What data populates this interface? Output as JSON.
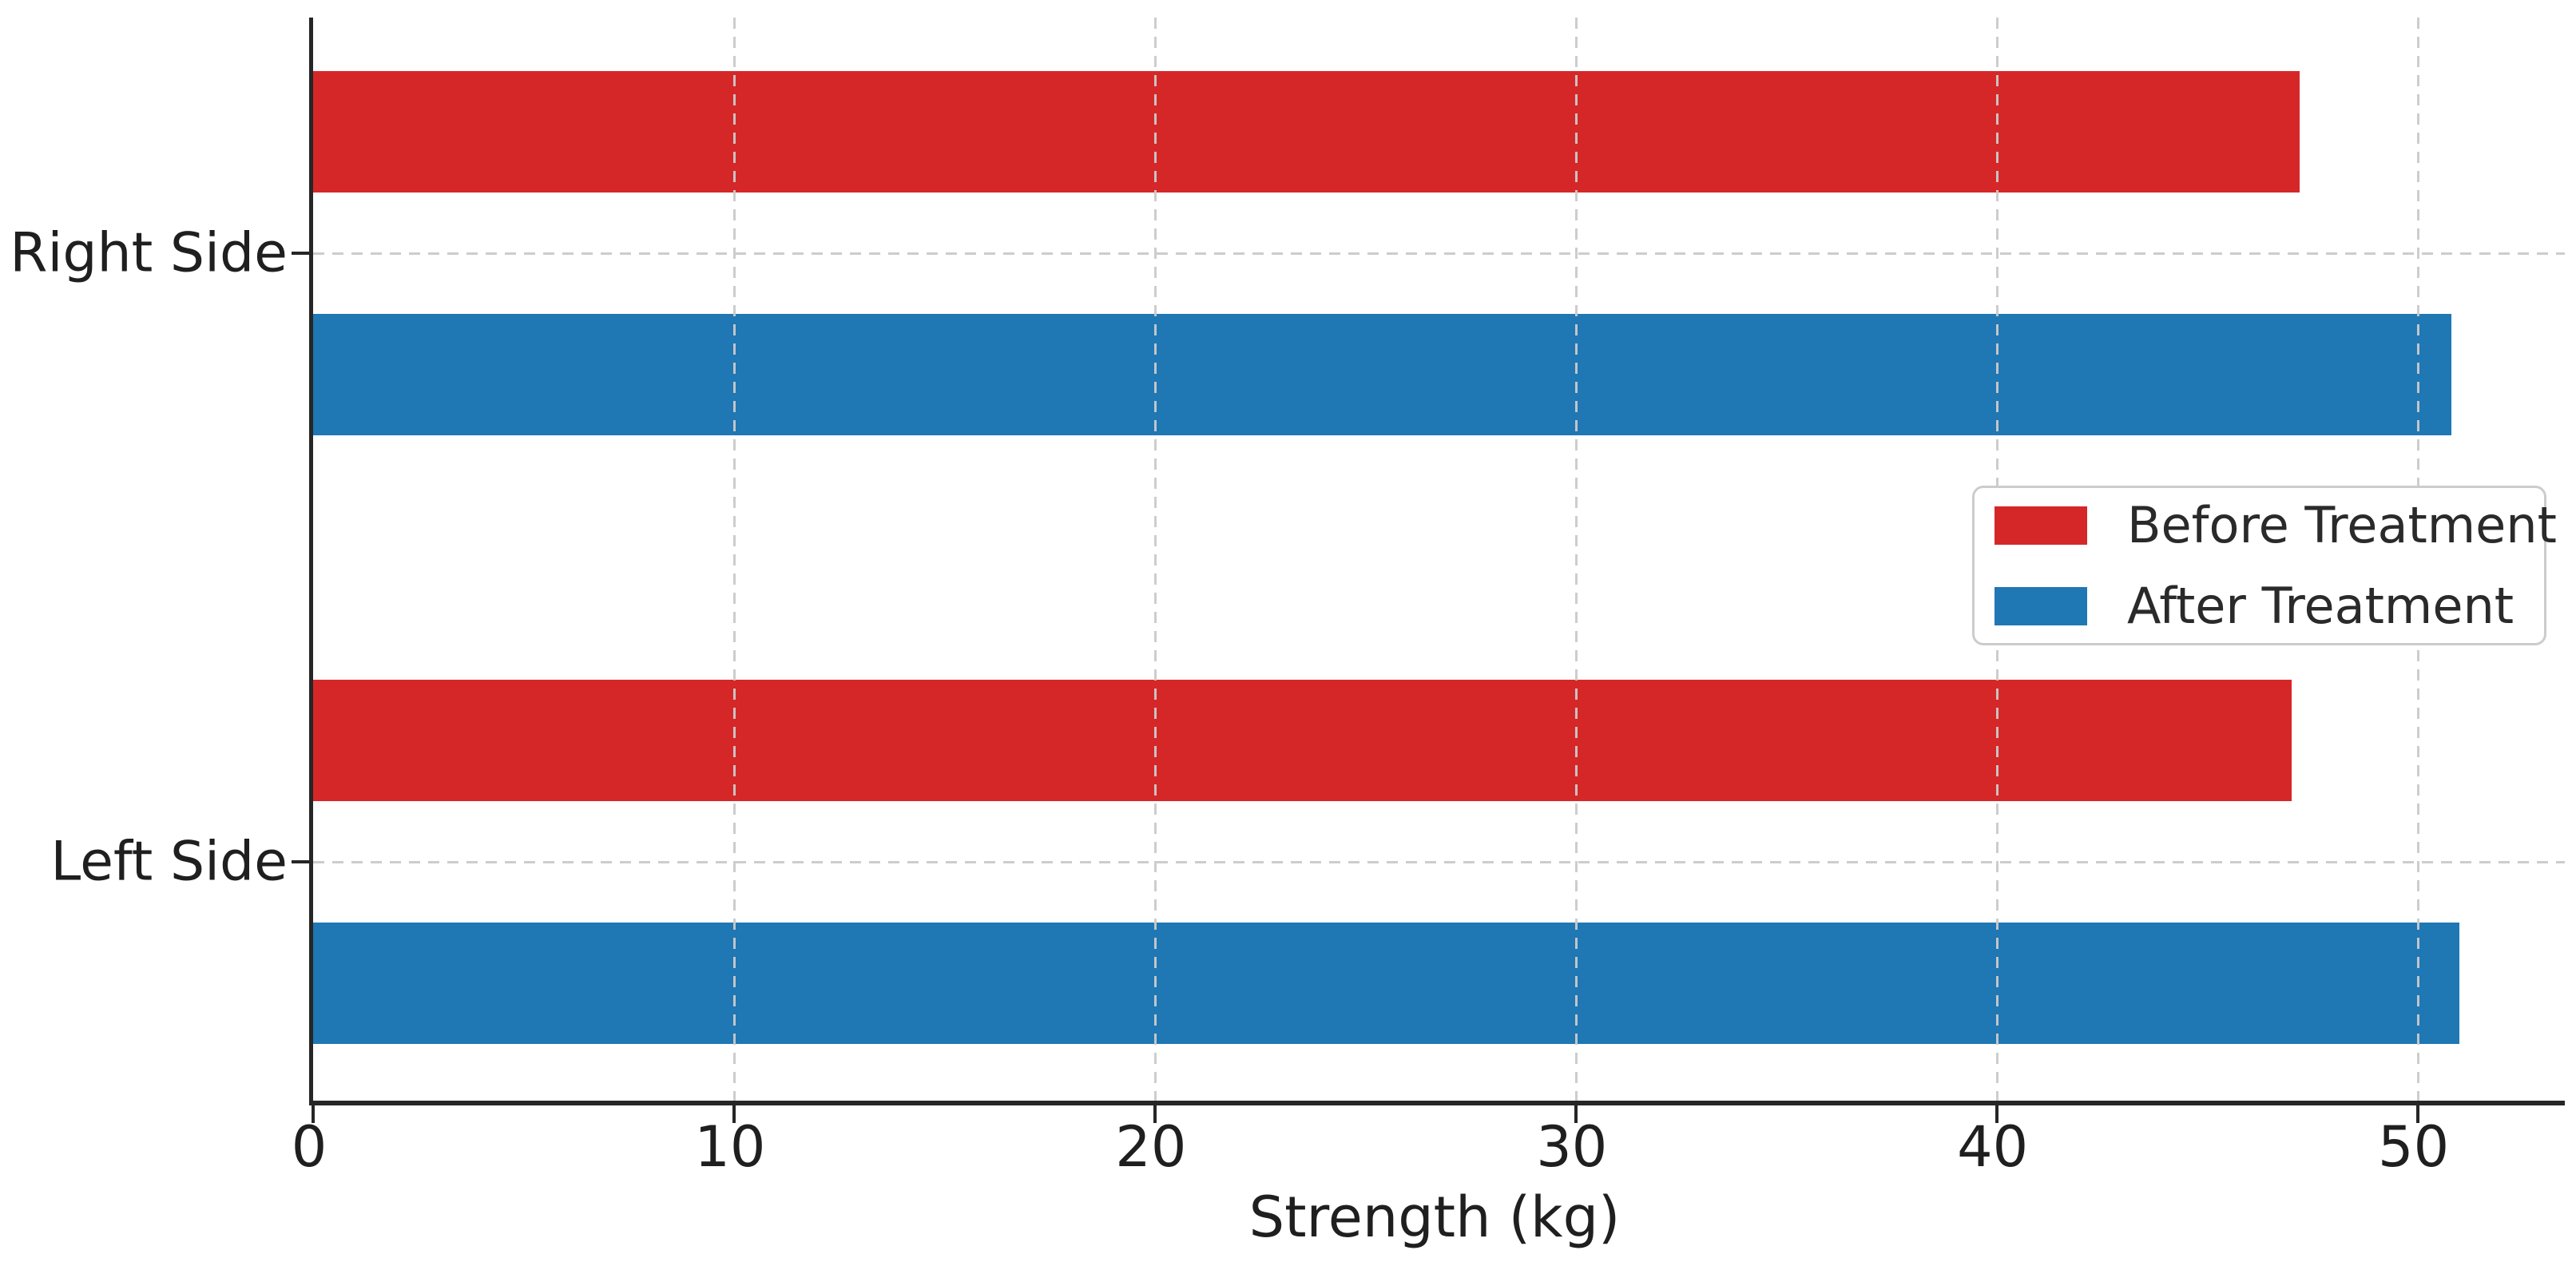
{
  "chart_data": {
    "type": "bar",
    "orientation": "horizontal",
    "title": "",
    "xlabel": "Strength (kg)",
    "ylabel": "",
    "categories": [
      "Right Side",
      "Left Side"
    ],
    "series": [
      {
        "name": "Before Treatment",
        "color": "#d62728",
        "values": [
          47.2,
          47.0
        ]
      },
      {
        "name": "After Treatment",
        "color": "#1f77b4",
        "values": [
          50.8,
          51.0
        ]
      }
    ],
    "x_ticks": [
      0,
      10,
      20,
      30,
      40,
      50
    ],
    "xlim": [
      0,
      53.5
    ],
    "grid": "dashed light-gray gridlines on both axes, drawn over bars",
    "legend_position": "center right",
    "spines": "left and bottom only, dark"
  },
  "colors": {
    "before_bar": "#d62728",
    "after_bar": "#1f77b4",
    "gridline": "#cacaca",
    "spine": "#262626",
    "legend_border": "#cccccc",
    "background": "#ffffff",
    "text": "#1f1f1f"
  }
}
